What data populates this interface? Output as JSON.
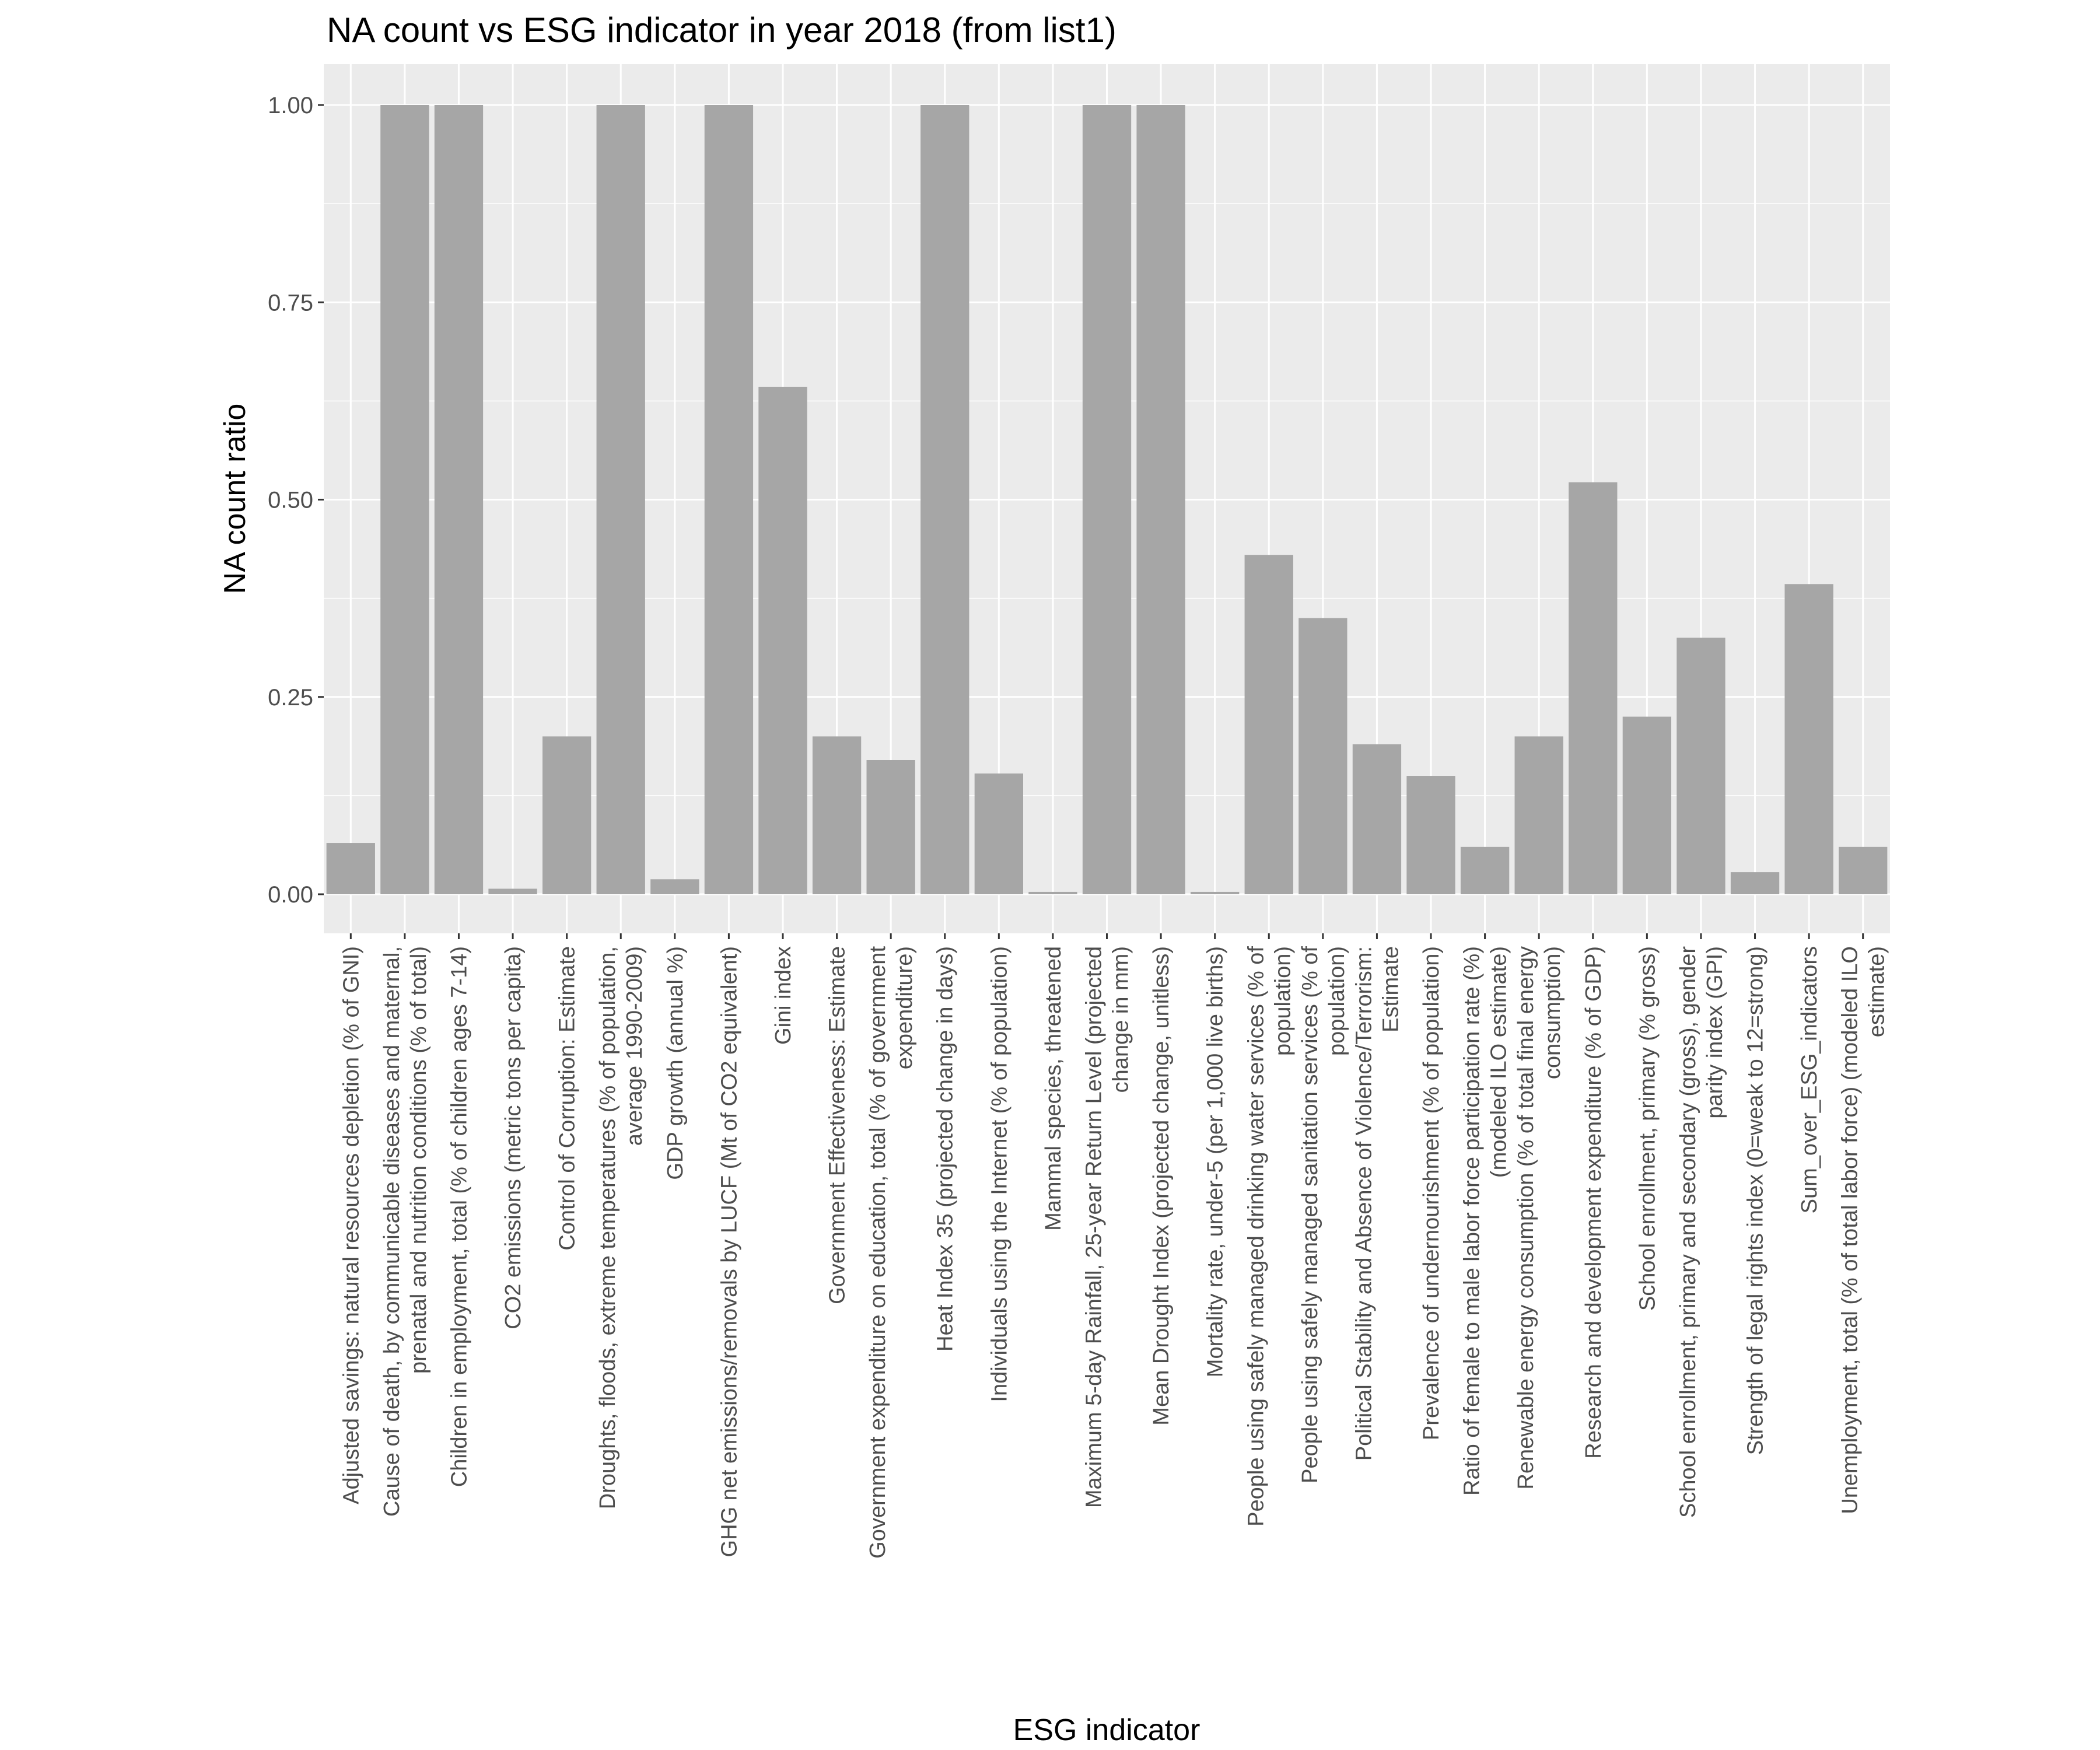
{
  "chart_data": {
    "type": "bar",
    "title": "NA count vs ESG indicator in year 2018 (from list1)",
    "xlabel": "ESG indicator",
    "ylabel": "NA count ratio",
    "ylim": [
      -0.05,
      1.05
    ],
    "yticks": [
      "0.00",
      "0.25",
      "0.50",
      "0.75",
      "1.00"
    ],
    "ytick_values": [
      0,
      0.25,
      0.5,
      0.75,
      1.0
    ],
    "grid": true,
    "legend": "none",
    "colors": {
      "bar": "#a6a6a6",
      "panel": "#ebebeb",
      "grid": "#ffffff",
      "tick_text": "#4d4d4d"
    },
    "categories": [
      "Adjusted savings: natural resources depletion (% of GNI)",
      "Cause of death, by communicable diseases and maternal, prenatal and nutrition conditions (% of total)",
      "Children in employment, total (% of children ages 7-14)",
      "CO2 emissions (metric tons per capita)",
      "Control of Corruption: Estimate",
      "Droughts, floods, extreme temperatures (% of population, average 1990-2009)",
      "GDP growth (annual %)",
      "GHG net emissions/removals by LUCF (Mt of CO2 equivalent)",
      "Gini index",
      "Government Effectiveness: Estimate",
      "Government expenditure on education, total (% of government expenditure)",
      "Heat Index 35 (projected change in days)",
      "Individuals using the Internet (% of population)",
      "Mammal species, threatened",
      "Maximum 5-day Rainfall, 25-year Return Level (projected change in mm)",
      "Mean Drought Index (projected change, unitless)",
      "Mortality rate, under-5 (per 1,000 live births)",
      "People using safely managed drinking water services (% of population)",
      "People using safely managed sanitation services (% of population)",
      "Political Stability and Absence of Violence/Terrorism: Estimate",
      "Prevalence of undernourishment (% of population)",
      "Ratio of female to male labor force participation rate (%) (modeled ILO estimate)",
      "Renewable energy consumption (% of total final energy consumption)",
      "Research and development expenditure (% of GDP)",
      "School enrollment, primary (% gross)",
      "School enrollment, primary and secondary (gross), gender parity index (GPI)",
      "Strength of legal rights index (0=weak to 12=strong)",
      "Sum_over_ESG_indicators",
      "Unemployment, total (% of total labor force) (modeled ILO estimate)"
    ],
    "category_lines": [
      [
        "Adjusted savings: natural resources depletion (% of GNI)"
      ],
      [
        "Cause of death, by communicable diseases and maternal,",
        "prenatal and nutrition conditions (% of total)"
      ],
      [
        "Children in employment, total (% of children ages 7-14)"
      ],
      [
        "CO2 emissions (metric tons per capita)"
      ],
      [
        "Control of Corruption: Estimate"
      ],
      [
        "Droughts, floods, extreme temperatures (% of population,",
        "average 1990-2009)"
      ],
      [
        "GDP growth (annual %)"
      ],
      [
        "GHG net emissions/removals by LUCF (Mt of CO2 equivalent)"
      ],
      [
        "Gini index"
      ],
      [
        "Government Effectiveness: Estimate"
      ],
      [
        "Government expenditure on education, total (% of government",
        "expenditure)"
      ],
      [
        "Heat Index 35 (projected change in days)"
      ],
      [
        "Individuals using the Internet (% of population)"
      ],
      [
        "Mammal species, threatened"
      ],
      [
        "Maximum 5-day Rainfall, 25-year Return Level (projected",
        "change in mm)"
      ],
      [
        "Mean Drought Index (projected change, unitless)"
      ],
      [
        "Mortality rate, under-5 (per 1,000 live births)"
      ],
      [
        "People using safely managed drinking water services (% of",
        "population)"
      ],
      [
        "People using safely managed sanitation services (% of",
        "population)"
      ],
      [
        "Political Stability and Absence of Violence/Terrorism:",
        "Estimate"
      ],
      [
        "Prevalence of undernourishment (% of population)"
      ],
      [
        "Ratio of female to male labor force participation rate (%)",
        "(modeled ILO estimate)"
      ],
      [
        "Renewable energy consumption (% of total final energy",
        "consumption)"
      ],
      [
        "Research and development expenditure (% of GDP)"
      ],
      [
        "School enrollment, primary (% gross)"
      ],
      [
        "School enrollment, primary and secondary (gross), gender",
        "parity index (GPI)"
      ],
      [
        "Strength of legal rights index (0=weak to 12=strong)"
      ],
      [
        "Sum_over_ESG_indicators"
      ],
      [
        "Unemployment, total (% of total labor force) (modeled ILO",
        "estimate)"
      ]
    ],
    "values": [
      0.065,
      1.0,
      1.0,
      0.007,
      0.2,
      1.0,
      0.019,
      1.0,
      0.643,
      0.2,
      0.17,
      1.0,
      0.153,
      0.003,
      1.0,
      1.0,
      0.003,
      0.43,
      0.35,
      0.19,
      0.15,
      0.06,
      0.2,
      0.522,
      0.225,
      0.325,
      0.028,
      0.393,
      0.06
    ]
  }
}
